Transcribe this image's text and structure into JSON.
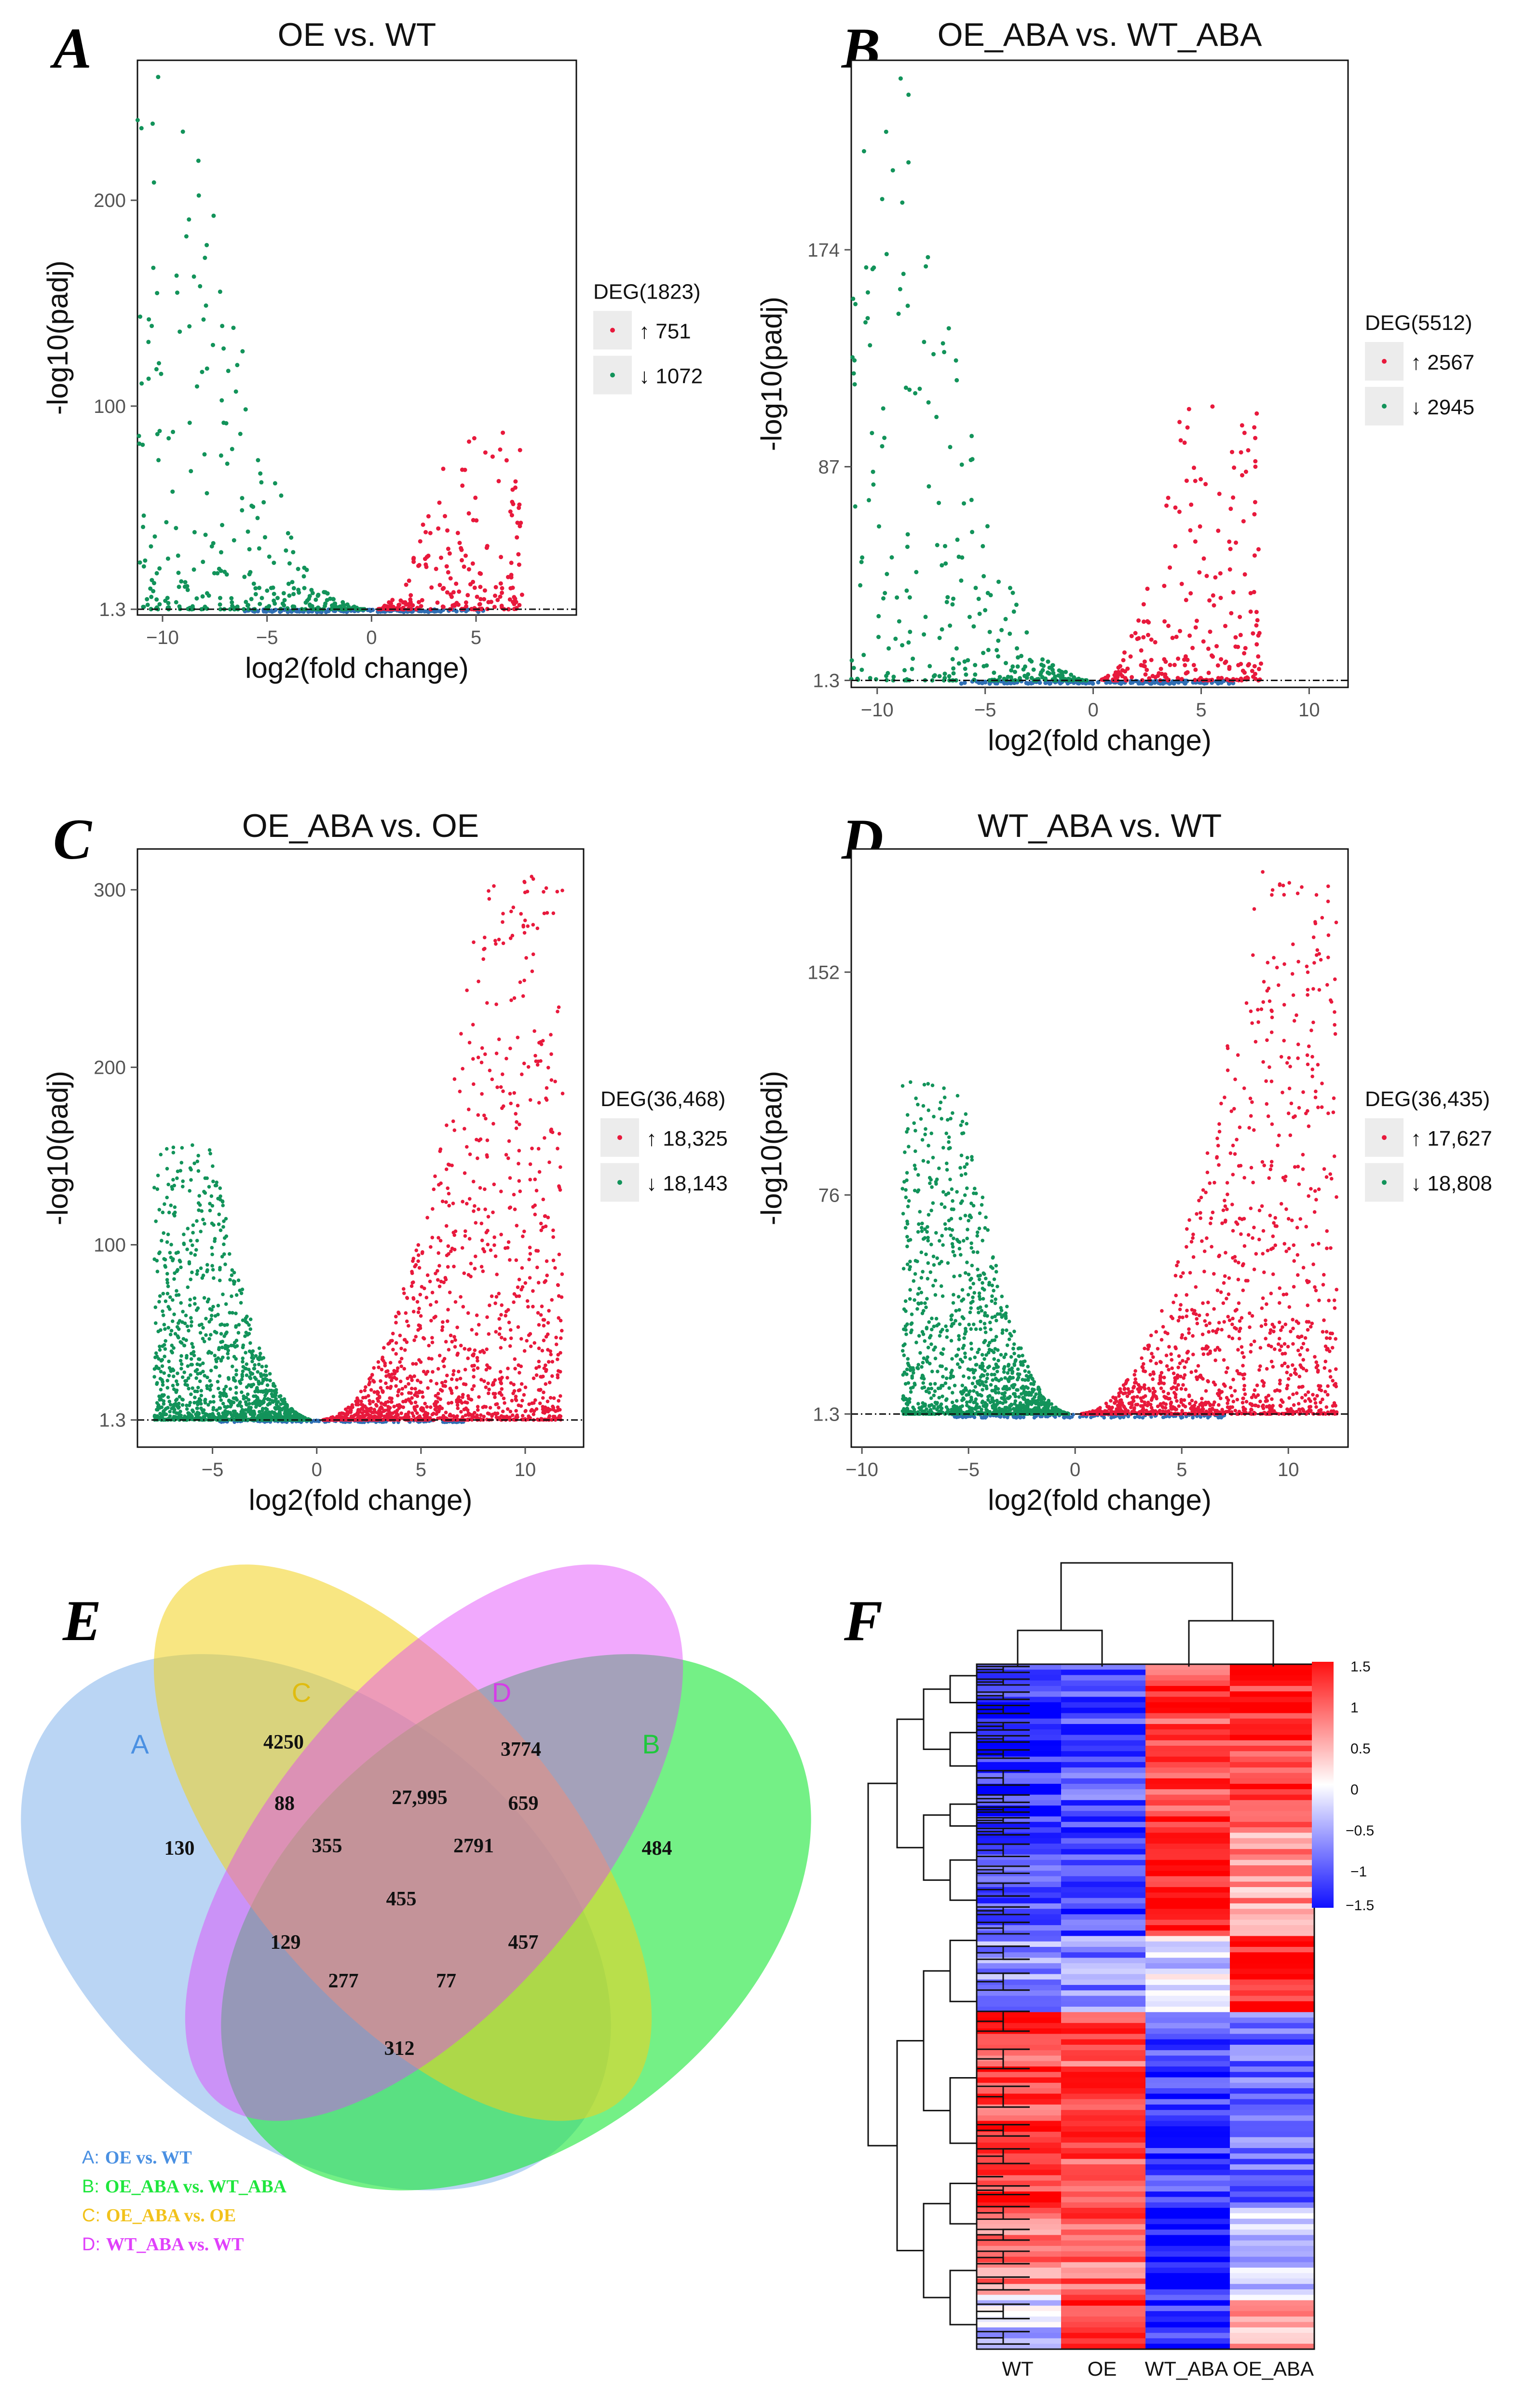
{
  "panels": {
    "A": "A",
    "B": "B",
    "C": "C",
    "D": "D",
    "E": "E",
    "F": "F"
  },
  "colors": {
    "up": "#e8193c",
    "down": "#12935a",
    "ns": "#2f6fb5",
    "legend_key_bg": "#ececec"
  },
  "chart_data": [
    {
      "type": "scatter",
      "id": "A",
      "title": "OE vs. WT",
      "xlabel": "log2(fold change)",
      "ylabel": "-log10(padj)",
      "xlim": [
        -11.2,
        9.8
      ],
      "ylim": [
        -1.5,
        268
      ],
      "xticks": [
        -10,
        -5,
        0,
        5
      ],
      "yticks": [
        1.3,
        100,
        200
      ],
      "threshold": 1.3,
      "legend_title": "DEG(1823)",
      "legend_up": "↑ 751",
      "legend_down": "↓ 1072",
      "up_count": 751,
      "down_count": 1072,
      "shape": {
        "down_scale": 1.0,
        "up_scale": 1.0,
        "down_peak": 260,
        "up_peak": 90,
        "down_center": -8.5,
        "up_center": 3.5
      }
    },
    {
      "type": "scatter",
      "id": "B",
      "title": "OE_ABA vs. WT_ABA",
      "xlabel": "log2(fold change)",
      "ylabel": "-log10(padj)",
      "xlim": [
        -11.2,
        11.8
      ],
      "ylim": [
        -1.5,
        250
      ],
      "xticks": [
        -10,
        -5,
        0,
        5,
        10
      ],
      "yticks": [
        1.3,
        87,
        174
      ],
      "threshold": 1.3,
      "legend_title": "DEG(5512)",
      "legend_up": "↑ 2567",
      "legend_down": "↓ 2945",
      "up_count": 2567,
      "down_count": 2945,
      "shape": {
        "down_scale": 1.0,
        "up_scale": 1.0,
        "down_peak": 245,
        "up_peak": 110,
        "down_center": -8.5,
        "up_center": 4.0
      }
    },
    {
      "type": "scatter",
      "id": "C",
      "title": "OE_ABA vs. OE",
      "xlabel": "log2(fold change)",
      "ylabel": "-log10(padj)",
      "xlim": [
        -8.6,
        12.8
      ],
      "ylim": [
        -14,
        323
      ],
      "xticks": [
        -5,
        0,
        5,
        10
      ],
      "yticks": [
        1.3,
        100,
        200,
        300
      ],
      "threshold": 1.3,
      "legend_title": "DEG(36,468)",
      "legend_up": "↑ 18,325",
      "legend_down": "↓ 18,143",
      "up_count": 18325,
      "down_count": 18143,
      "shape": {
        "down_scale": 1.0,
        "up_scale": 1.0,
        "down_peak": 155,
        "up_peak": 310,
        "down_center": -5.0,
        "up_center": 8.0
      }
    },
    {
      "type": "scatter",
      "id": "D",
      "title": "WT_ABA vs. WT",
      "xlabel": "log2(fold change)",
      "ylabel": "-log10(padj)",
      "xlim": [
        -10.5,
        12.8
      ],
      "ylim": [
        -10,
        194
      ],
      "xticks": [
        -10,
        -5,
        0,
        5,
        10
      ],
      "yticks": [
        1.3,
        76,
        152
      ],
      "threshold": 1.3,
      "legend_title": "DEG(36,435)",
      "legend_up": "↑ 17,627",
      "legend_down": "↓ 18,808",
      "up_count": 17627,
      "down_count": 18808,
      "shape": {
        "down_scale": 1.0,
        "up_scale": 1.0,
        "down_peak": 115,
        "up_peak": 185,
        "down_center": -5.3,
        "up_center": 8.5
      }
    },
    {
      "type": "venn",
      "id": "E",
      "set_labels": [
        "A",
        "B",
        "C",
        "D"
      ],
      "set_colors": [
        "#4a90e2",
        "#1ee63c",
        "#f2d21b",
        "#e040fb"
      ],
      "regions": {
        "A_only": "130",
        "C_only": "4250",
        "D_only": "3774",
        "B_only": "484",
        "AC": "88",
        "CD": "27,995",
        "BD": "659",
        "ACD": "355",
        "BCD": "2791",
        "ABCD": "455",
        "AD": "129",
        "ABC": "457",
        "ABD": "277",
        "ABCD2": "77",
        "AB": "312"
      },
      "legend": [
        {
          "key": "A:",
          "text": "OE vs. WT",
          "color": "#4a90e2"
        },
        {
          "key": "B:",
          "text": "OE_ABA vs. WT_ABA",
          "color": "#1ee63c"
        },
        {
          "key": "C:",
          "text": "OE_ABA vs. OE",
          "color": "#f2c21b"
        },
        {
          "key": "D:",
          "text": "WT_ABA vs. WT",
          "color": "#e040fb"
        }
      ]
    },
    {
      "type": "heatmap",
      "id": "F",
      "columns": [
        "WT",
        "OE",
        "WT_ABA",
        "OE_ABA"
      ],
      "colorbar": [
        "1.5",
        "1",
        "0.5",
        "0",
        "−0.5",
        "−1",
        "−1.5"
      ],
      "scale": [
        -1.5,
        1.5
      ],
      "blocks": [
        {
          "rows": 30,
          "pattern": [
            -1.2,
            -1.0,
            1.1,
            1.2
          ]
        },
        {
          "rows": 20,
          "pattern": [
            -1.0,
            -1.1,
            1.3,
            0.6
          ]
        },
        {
          "rows": 14,
          "pattern": [
            -0.6,
            -0.7,
            -0.2,
            1.4
          ]
        },
        {
          "rows": 36,
          "pattern": [
            1.1,
            1.0,
            -1.1,
            -0.9
          ]
        },
        {
          "rows": 16,
          "pattern": [
            0.8,
            0.9,
            -1.4,
            -0.3
          ]
        },
        {
          "rows": 10,
          "pattern": [
            -0.3,
            1.2,
            -1.2,
            0.4
          ]
        }
      ]
    }
  ]
}
